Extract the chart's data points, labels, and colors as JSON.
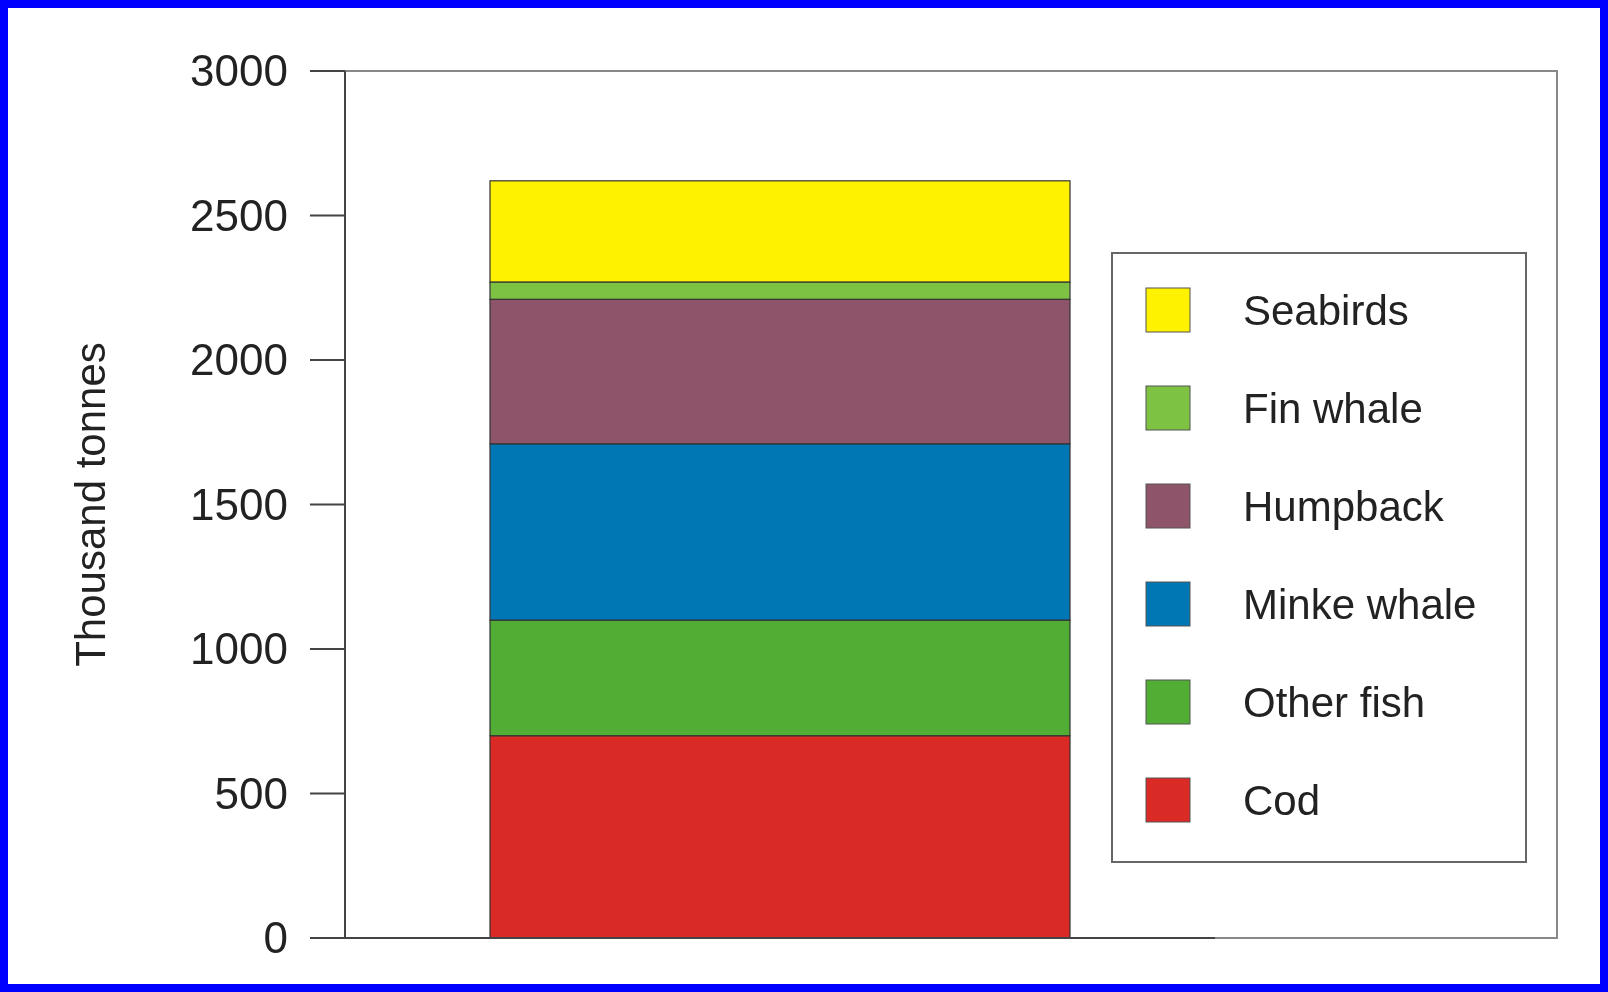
{
  "chart_data": {
    "type": "bar",
    "stacked": true,
    "ylabel": "Thousand tonnes",
    "categories": [
      null
    ],
    "series": [
      {
        "name": "Cod",
        "color": "#d92a25",
        "values": [
          700
        ]
      },
      {
        "name": "Other fish",
        "color": "#52ad35",
        "values": [
          400
        ]
      },
      {
        "name": "Minke whale",
        "color": "#0077b5",
        "values": [
          610
        ]
      },
      {
        "name": "Humpback",
        "color": "#8e5469",
        "values": [
          500
        ]
      },
      {
        "name": "Fin whale",
        "color": "#7dc242",
        "values": [
          60
        ]
      },
      {
        "name": "Seabirds",
        "color": "#fff200",
        "values": [
          350
        ]
      }
    ],
    "ylim": [
      0,
      3000
    ],
    "yticks": [
      0,
      500,
      1000,
      1500,
      2000,
      2500,
      3000
    ],
    "legend": "right",
    "grid": false
  }
}
